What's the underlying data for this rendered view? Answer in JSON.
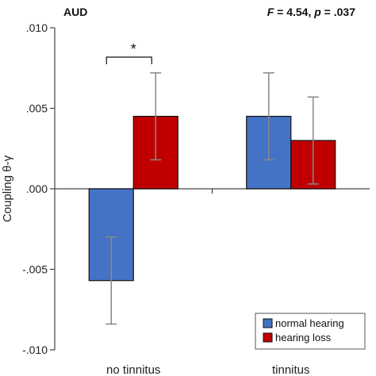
{
  "chart_data": {
    "type": "bar",
    "title": "AUD",
    "stat_prefix_f": "F",
    "stat_f_value": " = 4.54, ",
    "stat_prefix_p": "p",
    "stat_p_value": " = .037",
    "ylabel": "Coupling θ-γ",
    "categories": [
      "no tinnitus",
      "tinnitus"
    ],
    "series": [
      {
        "name": "normal hearing",
        "color": "#4472c4",
        "values": [
          -0.0057,
          0.0045
        ],
        "errors": [
          0.0027,
          0.0027
        ]
      },
      {
        "name": "hearing loss",
        "color": "#c00000",
        "values": [
          0.0045,
          0.003
        ],
        "errors": [
          0.0027,
          0.0027
        ]
      }
    ],
    "ylim": [
      -0.01,
      0.01
    ],
    "yticks": [
      0.01,
      0.005,
      0.0,
      -0.005,
      -0.01
    ],
    "ytick_labels": [
      ".010",
      ".005",
      ".000",
      "-.005",
      "-.010"
    ],
    "significance": {
      "category_index": 0,
      "label": "*"
    },
    "legend_position": "bottom-right",
    "grid": false
  }
}
